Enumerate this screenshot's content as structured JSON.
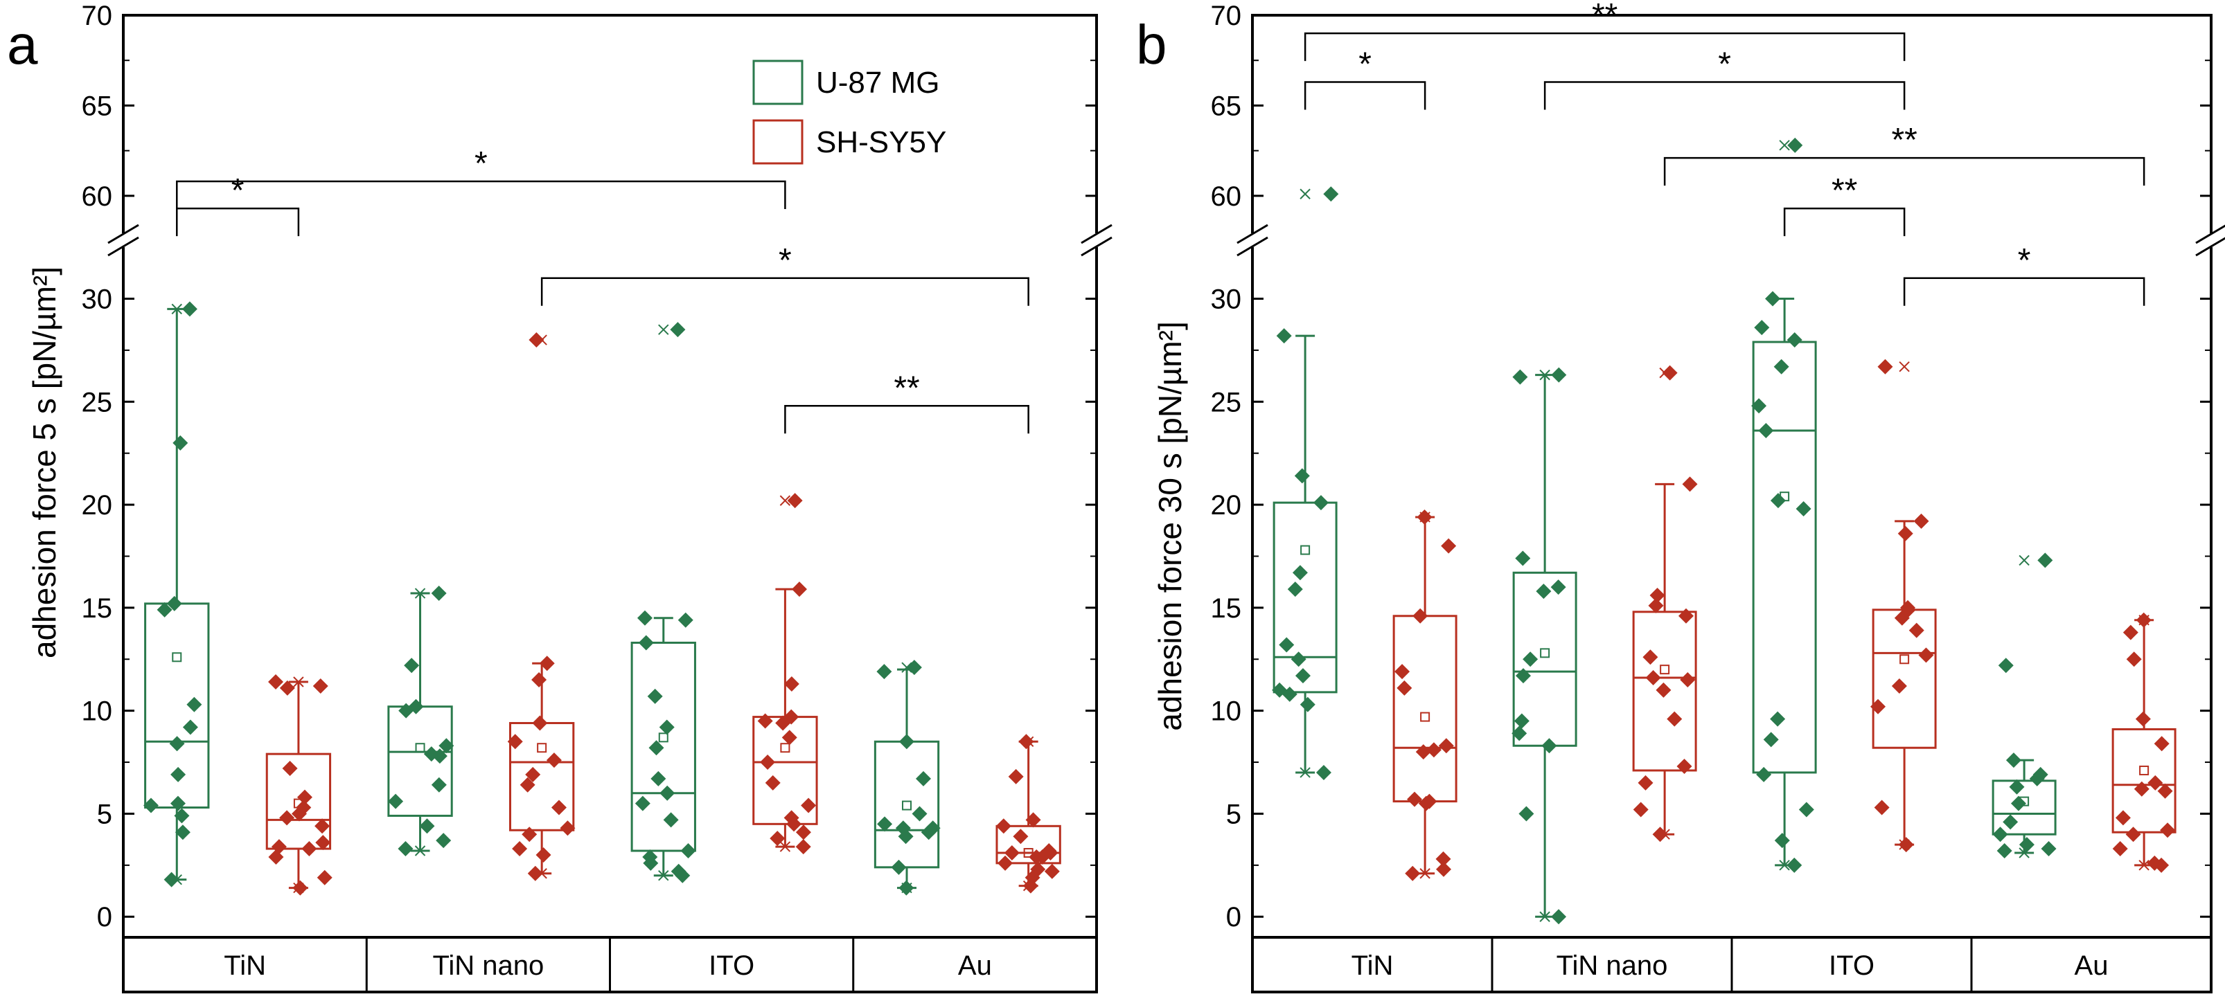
{
  "colors": {
    "u87": "#2a7a4c",
    "shsy": "#b83020",
    "axis": "#000000"
  },
  "chart_data": [
    {
      "type": "box",
      "panel": "a",
      "ylabel": "adhesion force 5 s [pN/µm²]",
      "categories": [
        "TiN",
        "TiN nano",
        "ITO",
        "Au"
      ],
      "y_lower_range": [
        -1,
        32
      ],
      "y_upper_range": [
        58.5,
        70
      ],
      "axis_break": [
        32,
        58.5
      ],
      "yticks_lower": [
        "0",
        "5",
        "10",
        "15",
        "20",
        "25",
        "30"
      ],
      "yticks_upper": [
        "60",
        "65",
        "70"
      ],
      "legend": {
        "position": "top-right",
        "entries": [
          "U-87 MG",
          "SH-SY5Y"
        ]
      },
      "series": [
        {
          "name": "U-87 MG",
          "color": "#2a7a4c",
          "boxes": [
            {
              "category": "TiN",
              "q1": 5.3,
              "median": 8.5,
              "q3": 15.2,
              "whisker_low": 1.8,
              "whisker_high": 29.5,
              "mean": 12.6,
              "points": [
                29.5,
                23.0,
                15.2,
                14.9,
                10.3,
                9.2,
                8.4,
                6.9,
                5.5,
                5.4,
                4.9,
                4.1,
                1.8
              ],
              "min": 1.8,
              "max": 29.5
            },
            {
              "category": "TiN nano",
              "q1": 4.9,
              "median": 8.0,
              "q3": 10.2,
              "whisker_low": 3.2,
              "whisker_high": 15.7,
              "mean": 8.2,
              "points": [
                15.7,
                12.2,
                10.2,
                10.0,
                8.3,
                7.9,
                7.8,
                6.4,
                5.6,
                4.4,
                3.7,
                3.3
              ],
              "min": 3.2,
              "max": 15.7
            },
            {
              "category": "ITO",
              "q1": 3.2,
              "median": 6.0,
              "q3": 13.3,
              "whisker_low": 2.0,
              "whisker_high": 14.5,
              "mean": 8.7,
              "points": [
                28.5,
                14.5,
                14.4,
                13.3,
                10.7,
                9.2,
                8.2,
                6.7,
                6.0,
                5.5,
                4.7,
                3.2,
                2.9,
                2.6,
                2.2,
                2.0
              ],
              "min": 2.0,
              "max": 28.5
            },
            {
              "category": "Au",
              "q1": 2.4,
              "median": 4.2,
              "q3": 8.5,
              "whisker_low": 1.4,
              "whisker_high": 12.0,
              "mean": 5.4,
              "points": [
                12.1,
                11.9,
                8.5,
                6.7,
                5.0,
                4.5,
                4.3,
                4.3,
                4.1,
                3.9,
                2.4,
                1.4
              ],
              "min": 1.4,
              "max": 12.1
            }
          ]
        },
        {
          "name": "SH-SY5Y",
          "color": "#b83020",
          "boxes": [
            {
              "category": "TiN",
              "q1": 3.3,
              "median": 4.7,
              "q3": 7.9,
              "whisker_low": 1.4,
              "whisker_high": 11.4,
              "mean": 5.5,
              "points": [
                11.4,
                11.2,
                11.1,
                7.2,
                5.8,
                5.3,
                5.0,
                4.8,
                4.4,
                3.6,
                3.4,
                3.3,
                2.9,
                1.9,
                1.4
              ],
              "min": 1.4,
              "max": 11.4
            },
            {
              "category": "TiN nano",
              "q1": 4.2,
              "median": 7.5,
              "q3": 9.4,
              "whisker_low": 2.1,
              "whisker_high": 12.3,
              "mean": 8.2,
              "points": [
                28.0,
                12.3,
                11.5,
                9.4,
                8.5,
                7.6,
                6.9,
                6.4,
                5.3,
                4.3,
                4.0,
                3.3,
                3.0,
                2.1
              ],
              "min": 2.1,
              "max": 28.0
            },
            {
              "category": "ITO",
              "q1": 4.5,
              "median": 7.5,
              "q3": 9.7,
              "whisker_low": 3.4,
              "whisker_high": 15.9,
              "mean": 8.2,
              "points": [
                20.2,
                15.9,
                11.3,
                9.7,
                9.5,
                9.4,
                8.7,
                7.5,
                6.5,
                5.4,
                4.8,
                4.5,
                4.1,
                3.8,
                3.4
              ],
              "min": 3.4,
              "max": 20.2
            },
            {
              "category": "Au",
              "q1": 2.6,
              "median": 3.1,
              "q3": 4.4,
              "whisker_low": 1.5,
              "whisker_high": 8.5,
              "mean": 3.1,
              "points": [
                8.5,
                6.8,
                4.7,
                4.4,
                3.9,
                3.2,
                3.1,
                3.1,
                2.9,
                2.9,
                2.6,
                2.3,
                2.2,
                1.9,
                1.5
              ],
              "min": 1.5,
              "max": 8.5
            }
          ]
        }
      ],
      "significance": [
        {
          "x1": "TiN|U-87 MG",
          "x2": "TiN|SH-SY5Y",
          "y": 59.3,
          "label": "*"
        },
        {
          "x1": "TiN|U-87 MG",
          "x2": "ITO|SH-SY5Y",
          "y": 60.8,
          "label": "*"
        },
        {
          "x1": "TiN nano|SH-SY5Y",
          "x2": "Au|SH-SY5Y",
          "y": 31.0,
          "label": "*"
        },
        {
          "x1": "ITO|SH-SY5Y",
          "x2": "Au|SH-SY5Y",
          "y": 24.8,
          "label": "**"
        }
      ]
    },
    {
      "type": "box",
      "panel": "b",
      "ylabel": "adhesion force 30 s [pN/µm²]",
      "categories": [
        "TiN",
        "TiN nano",
        "ITO",
        "Au"
      ],
      "y_lower_range": [
        -1,
        32
      ],
      "y_upper_range": [
        58.5,
        70
      ],
      "axis_break": [
        32,
        58.5
      ],
      "yticks_lower": [
        "0",
        "5",
        "10",
        "15",
        "20",
        "25",
        "30"
      ],
      "yticks_upper": [
        "60",
        "65",
        "70"
      ],
      "series": [
        {
          "name": "U-87 MG",
          "color": "#2a7a4c",
          "boxes": [
            {
              "category": "TiN",
              "q1": 10.9,
              "median": 12.6,
              "q3": 20.1,
              "whisker_low": 7.0,
              "whisker_high": 28.2,
              "mean": 17.8,
              "points": [
                60.1,
                28.2,
                21.4,
                20.1,
                16.7,
                15.9,
                13.2,
                12.5,
                11.7,
                11.0,
                10.8,
                10.3,
                7.0
              ],
              "min": 7.0,
              "max": 60.1
            },
            {
              "category": "TiN nano",
              "q1": 8.3,
              "median": 11.9,
              "q3": 16.7,
              "whisker_low": 0.0,
              "whisker_high": 26.3,
              "mean": 12.8,
              "points": [
                26.3,
                26.2,
                17.4,
                16.0,
                15.8,
                12.5,
                11.7,
                9.5,
                8.9,
                8.3,
                5.0,
                0.0
              ],
              "min": 0.0,
              "max": 26.3
            },
            {
              "category": "ITO",
              "q1": 7.0,
              "median": 23.6,
              "q3": 27.9,
              "whisker_low": 2.5,
              "whisker_high": 30.0,
              "mean": 20.4,
              "points": [
                62.8,
                30.0,
                28.6,
                28.0,
                26.7,
                24.8,
                23.6,
                20.2,
                19.8,
                9.6,
                8.6,
                6.9,
                5.2,
                3.7,
                2.5
              ],
              "min": 2.5,
              "max": 62.8
            },
            {
              "category": "Au",
              "q1": 4.0,
              "median": 5.0,
              "q3": 6.6,
              "whisker_low": 3.1,
              "whisker_high": 7.6,
              "mean": 5.6,
              "points": [
                17.3,
                12.2,
                7.6,
                6.9,
                6.7,
                6.3,
                5.5,
                4.6,
                4.0,
                3.5,
                3.3,
                3.2
              ],
              "min": 3.1,
              "max": 17.3
            }
          ]
        },
        {
          "name": "SH-SY5Y",
          "color": "#b83020",
          "boxes": [
            {
              "category": "TiN",
              "q1": 5.6,
              "median": 8.2,
              "q3": 14.6,
              "whisker_low": 2.1,
              "whisker_high": 19.4,
              "mean": 9.7,
              "points": [
                19.4,
                18.0,
                14.6,
                11.9,
                11.1,
                8.3,
                8.1,
                8.0,
                5.7,
                5.6,
                5.5,
                2.8,
                2.3,
                2.1
              ],
              "min": 2.1,
              "max": 19.4
            },
            {
              "category": "TiN nano",
              "q1": 7.1,
              "median": 11.6,
              "q3": 14.8,
              "whisker_low": 4.0,
              "whisker_high": 21.0,
              "mean": 12.0,
              "points": [
                26.4,
                21.0,
                15.6,
                15.1,
                14.6,
                12.6,
                11.6,
                11.5,
                11.0,
                9.6,
                7.3,
                6.5,
                5.2,
                4.0
              ],
              "min": 4.0,
              "max": 26.4
            },
            {
              "category": "ITO",
              "q1": 8.2,
              "median": 12.8,
              "q3": 14.9,
              "whisker_low": 3.5,
              "whisker_high": 19.2,
              "mean": 12.5,
              "points": [
                26.7,
                19.2,
                18.6,
                15.0,
                14.9,
                14.5,
                13.9,
                12.7,
                11.2,
                10.2,
                5.3,
                3.5
              ],
              "min": 3.5,
              "max": 26.7
            },
            {
              "category": "Au",
              "q1": 4.1,
              "median": 6.4,
              "q3": 9.1,
              "whisker_low": 2.5,
              "whisker_high": 14.4,
              "mean": 7.1,
              "points": [
                14.4,
                13.8,
                12.5,
                9.6,
                8.4,
                6.5,
                6.2,
                6.1,
                4.8,
                4.2,
                4.0,
                3.3,
                2.6,
                2.5
              ],
              "min": 2.5,
              "max": 14.4
            }
          ]
        }
      ],
      "significance": [
        {
          "x1": "TiN|U-87 MG",
          "x2": "ITO|SH-SY5Y",
          "y": 69.0,
          "label": "**"
        },
        {
          "x1": "TiN|U-87 MG",
          "x2": "TiN|SH-SY5Y",
          "y": 66.3,
          "label": "*"
        },
        {
          "x1": "TiN nano|U-87 MG",
          "x2": "ITO|SH-SY5Y",
          "y": 66.3,
          "label": "*"
        },
        {
          "x1": "TiN nano|SH-SY5Y",
          "x2": "Au|SH-SY5Y",
          "y": 62.1,
          "label": "**"
        },
        {
          "x1": "ITO|U-87 MG",
          "x2": "ITO|SH-SY5Y",
          "y": 59.3,
          "label": "**"
        },
        {
          "x1": "ITO|SH-SY5Y",
          "x2": "Au|SH-SY5Y",
          "y": 31.0,
          "label": "*"
        }
      ]
    }
  ]
}
